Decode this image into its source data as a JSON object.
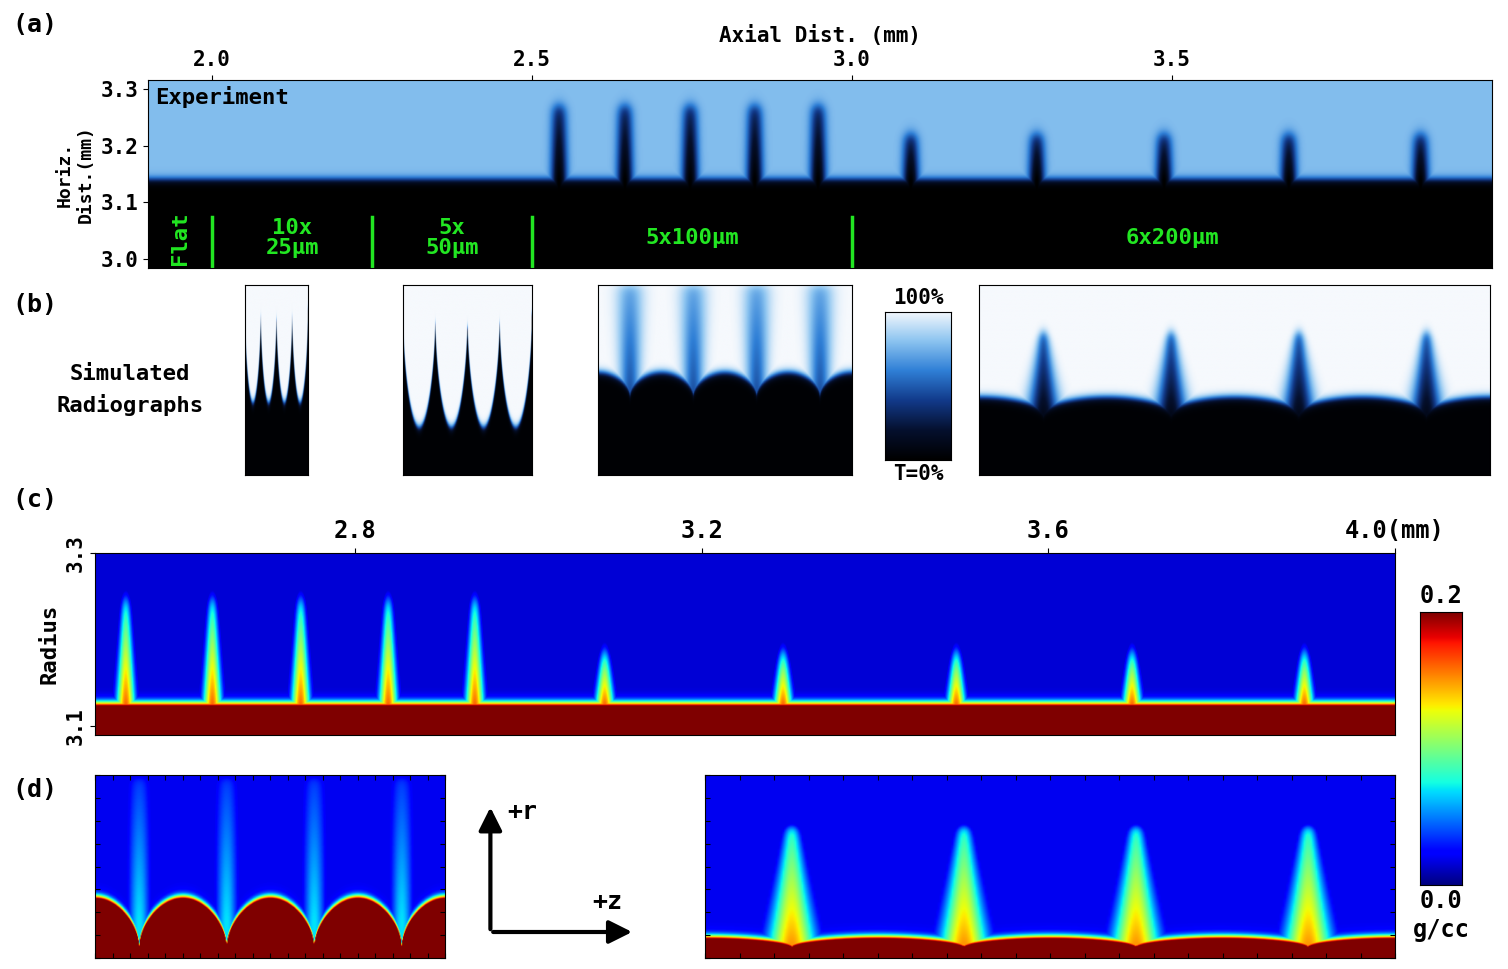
{
  "chart_data": [
    {
      "type": "image",
      "panel_label": "(a)",
      "title": "Experiment",
      "xlabel": "Axial Dist. (mm)",
      "ylabel": "Horiz.\nDist.(mm)",
      "xlim": [
        1.9,
        4.0
      ],
      "ylim": [
        2.985,
        3.315
      ],
      "xticks": [
        2.0,
        2.5,
        3.0,
        3.5
      ],
      "yticks": [
        3.0,
        3.1,
        3.2,
        3.3
      ],
      "interface": 3.14,
      "segments": {
        "boundaries": [
          2.0,
          2.25,
          2.5,
          3.0
        ],
        "labels": [
          "Flat",
          "10x\n25µm",
          "5x\n50µm",
          "5x100µm",
          "6x200µm"
        ]
      },
      "spikes": {
        "z": [
          2.542,
          2.645,
          2.747,
          2.848,
          2.947,
          3.092,
          3.289,
          3.488,
          3.683,
          3.889
        ],
        "tip": [
          3.27,
          3.27,
          3.27,
          3.27,
          3.27,
          3.22,
          3.22,
          3.22,
          3.22,
          3.22
        ]
      }
    },
    {
      "type": "image",
      "panel_label": "(b)",
      "title": "Simulated\nRadiographs",
      "tick_labels": false,
      "colorbar": {
        "range": [
          0,
          100
        ],
        "ticks": [
          {
            "value": 100,
            "label": "100%"
          },
          {
            "value": 0,
            "label": "T=0%"
          }
        ]
      }
    },
    {
      "type": "image",
      "panel_label": "(c)",
      "ylabel": "Radius",
      "xlim": [
        2.5,
        4.0
      ],
      "ylim": [
        3.09,
        3.3
      ],
      "xticks": [
        2.8,
        3.2,
        3.6,
        {
          "value": 4.0,
          "label": "4.0(mm)"
        }
      ],
      "yticks": [
        3.1,
        3.3
      ],
      "interface": 3.125,
      "spikes": {
        "z": [
          2.535,
          2.635,
          2.737,
          2.838,
          2.938,
          3.088,
          3.294,
          3.494,
          3.697,
          3.896
        ],
        "tip": [
          3.25,
          3.25,
          3.25,
          3.25,
          3.25,
          3.19,
          3.19,
          3.19,
          3.19,
          3.19
        ]
      },
      "colorbar": {
        "range": [
          0.0,
          0.2
        ],
        "ticks": [
          0.0,
          0.2
        ],
        "label": "g/cc"
      }
    },
    {
      "type": "image",
      "panel_label": "(d)",
      "tick_labels": false,
      "axis_labels": [
        "+r",
        "+z"
      ]
    }
  ]
}
